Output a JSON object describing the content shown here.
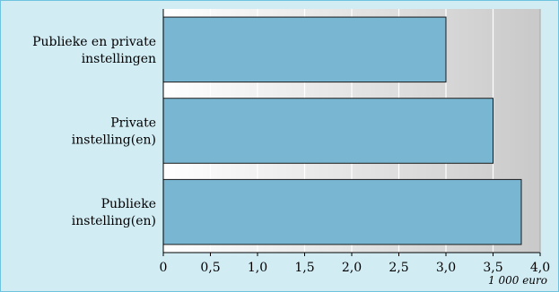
{
  "chart_data": {
    "type": "bar",
    "orientation": "horizontal",
    "categories": [
      "Publieke en private instellingen",
      "Private instelling(en)",
      "Publieke instelling(en)"
    ],
    "category_lines": [
      [
        "Publieke en private",
        "instellingen"
      ],
      [
        "Private",
        "instelling(en)"
      ],
      [
        "Publieke",
        "instelling(en)"
      ]
    ],
    "values": [
      3.0,
      3.5,
      3.8
    ],
    "xlim": [
      0,
      4.0
    ],
    "x_ticks": [
      0,
      0.5,
      1.0,
      1.5,
      2.0,
      2.5,
      3.0,
      3.5,
      4.0
    ],
    "x_tick_labels": [
      "0",
      "0,5",
      "1,0",
      "1,5",
      "2,0",
      "2,5",
      "3,0",
      "3,5",
      "4,0"
    ],
    "unit_label": "1 000 euro",
    "grid": "vertical",
    "title": "",
    "xlabel": "",
    "ylabel": ""
  },
  "colors": {
    "background": "#d2ecf4",
    "border": "#6fc3de",
    "bar": "#79b6d1",
    "bar_edge": "#1a1a1a",
    "plot_gradient_left": "#ffffff",
    "plot_gradient_right": "#c9c9c9",
    "grid": "#ffffff"
  }
}
